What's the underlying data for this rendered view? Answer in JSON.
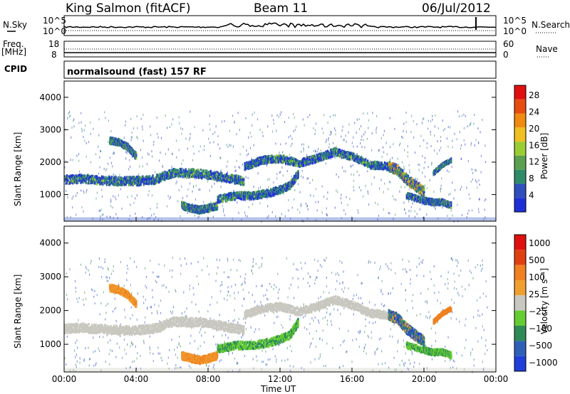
{
  "header": {
    "station": "King Salmon (fitACF)",
    "beam": "Beam 11",
    "date": "06/Jul/2012"
  },
  "strip": {
    "nsky_label": "N.Sky",
    "nsearch_label": "N.Search",
    "freq_label_1": "Freq.",
    "freq_label_2": "[MHz]",
    "nave_label": "Nave",
    "cpid_label": "CPID",
    "cpid_value": "normalsound (fast) 157 RF",
    "noise_ticks_left": [
      "10^5",
      "10^0"
    ],
    "noise_ticks_right": [
      "10^5",
      "10^0"
    ],
    "freq_ticks": [
      "18",
      "8"
    ],
    "nave_ticks": [
      "60",
      "0"
    ]
  },
  "colors": {
    "power": [
      "#1f2fd8",
      "#2f4fbf",
      "#2e8b6a",
      "#5aa050",
      "#9acd32",
      "#f0c020",
      "#f08a10",
      "#e84c10",
      "#e01010"
    ],
    "velocity": [
      "#1f3fd8",
      "#2e60b8",
      "#2e8b57",
      "#66cc33",
      "#c8c8c0",
      "#f0a030",
      "#f08020",
      "#e04010",
      "#e01010"
    ]
  },
  "chart_data": [
    {
      "type": "heatmap",
      "title": "",
      "xlabel": "Time UT",
      "ylabel": "Slant Range [km]",
      "x_ticks": [
        "00:00",
        "04:00",
        "08:00",
        "12:00",
        "16:00",
        "20:00",
        "00:00"
      ],
      "y_ticks": [
        "1000",
        "2000",
        "3000",
        "4000"
      ],
      "ylim": [
        180,
        4500
      ],
      "colorbar_label": "Power [dB]",
      "colorbar_ticks": [
        "4",
        "8",
        "12",
        "16",
        "20",
        "24",
        "28"
      ],
      "echo_bands": [
        {
          "t": [
            0.0,
            1.0,
            2.0,
            3.0,
            4.0,
            5.0,
            6.0,
            7.0,
            8.0,
            9.0,
            10.0
          ],
          "range": [
            1500,
            1520,
            1480,
            1450,
            1450,
            1500,
            1700,
            1700,
            1650,
            1550,
            1450
          ],
          "width": 260
        },
        {
          "t": [
            6.5,
            7.0,
            7.5,
            8.0,
            8.5
          ],
          "range": [
            700,
            620,
            560,
            620,
            700
          ],
          "width": 220
        },
        {
          "t": [
            8.5,
            9.5,
            10.5,
            11.5,
            12.5,
            13.0
          ],
          "range": [
            900,
            1000,
            1000,
            1100,
            1300,
            1700
          ],
          "width": 230
        },
        {
          "t": [
            10.0,
            11.0,
            12.0,
            13.0,
            14.0,
            15.0,
            16.0,
            17.0,
            18.0
          ],
          "range": [
            1900,
            2100,
            2150,
            2000,
            2150,
            2350,
            2200,
            1950,
            1900
          ],
          "width": 230
        },
        {
          "t": [
            18.0,
            18.5,
            19.0,
            19.5,
            20.0
          ],
          "range": [
            1900,
            1800,
            1500,
            1300,
            1100
          ],
          "width": 300
        },
        {
          "t": [
            19.0,
            20.0,
            20.5,
            21.0,
            21.5
          ],
          "range": [
            1000,
            850,
            800,
            800,
            700
          ],
          "width": 180
        },
        {
          "t": [
            2.5,
            3.0,
            3.5,
            4.0
          ],
          "range": [
            2700,
            2650,
            2500,
            2200
          ],
          "width": 200
        },
        {
          "t": [
            20.5,
            21.0,
            21.5
          ],
          "range": [
            1700,
            1950,
            2100
          ],
          "width": 120
        }
      ]
    },
    {
      "type": "heatmap",
      "title": "",
      "xlabel": "Time UT",
      "ylabel": "Slant Range [km]",
      "x_ticks": [
        "00:00",
        "04:00",
        "08:00",
        "12:00",
        "16:00",
        "20:00",
        "00:00"
      ],
      "y_ticks": [
        "1000",
        "2000",
        "3000",
        "4000"
      ],
      "ylim": [
        180,
        4500
      ],
      "colorbar_label": "Velocity [m s⁻¹]",
      "colorbar_ticks": [
        "1000",
        "500",
        "100",
        "25",
        "−25",
        "−100",
        "−500",
        "−1000"
      ],
      "echo_bands": [
        {
          "t": [
            0.0,
            1.0,
            2.0,
            3.0,
            4.0,
            5.0,
            6.0,
            7.0,
            8.0,
            9.0,
            10.0
          ],
          "range": [
            1500,
            1520,
            1480,
            1450,
            1450,
            1500,
            1700,
            1700,
            1650,
            1550,
            1450
          ],
          "width": 260
        },
        {
          "t": [
            6.5,
            7.0,
            7.5,
            8.0,
            8.5
          ],
          "range": [
            700,
            620,
            560,
            620,
            700
          ],
          "width": 220
        },
        {
          "t": [
            8.5,
            9.5,
            10.5,
            11.5,
            12.5,
            13.0
          ],
          "range": [
            900,
            1000,
            1000,
            1100,
            1300,
            1700
          ],
          "width": 230
        },
        {
          "t": [
            10.0,
            11.0,
            12.0,
            13.0,
            14.0,
            15.0,
            16.0,
            17.0,
            18.0
          ],
          "range": [
            1900,
            2100,
            2150,
            2000,
            2150,
            2350,
            2200,
            1950,
            1900
          ],
          "width": 230
        },
        {
          "t": [
            18.0,
            18.5,
            19.0,
            19.5,
            20.0
          ],
          "range": [
            1900,
            1800,
            1500,
            1300,
            1100
          ],
          "width": 300
        },
        {
          "t": [
            19.0,
            20.0,
            20.5,
            21.0,
            21.5
          ],
          "range": [
            1000,
            850,
            800,
            800,
            700
          ],
          "width": 180
        },
        {
          "t": [
            2.5,
            3.0,
            3.5,
            4.0
          ],
          "range": [
            2700,
            2650,
            2500,
            2200
          ],
          "width": 200
        },
        {
          "t": [
            20.5,
            21.0,
            21.5
          ],
          "range": [
            1700,
            1950,
            2100
          ],
          "width": 120
        }
      ]
    }
  ]
}
